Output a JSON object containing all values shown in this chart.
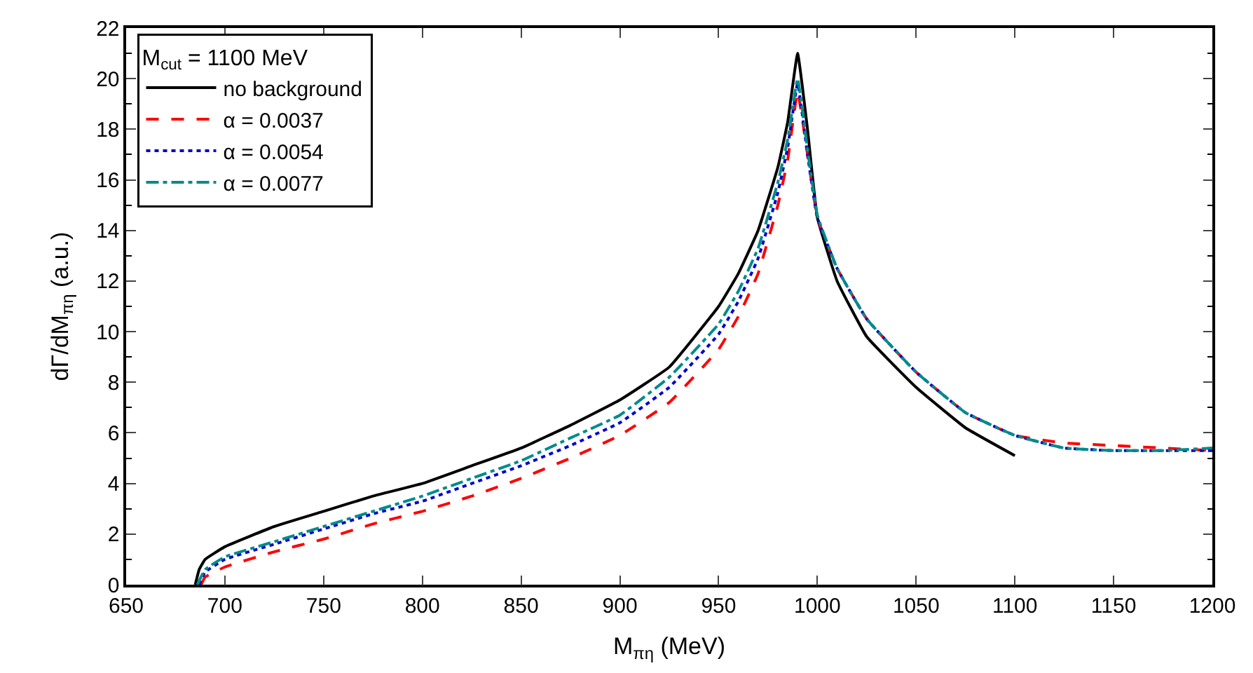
{
  "chart_data": {
    "type": "line",
    "xlabel": "M$_{πη}$ (MeV)",
    "ylabel": "dΓ/dM$_{πη}$ (a.u.)",
    "legend_title": "M$_{cut}$ = 1100 MeV",
    "legend": "top left",
    "marker": "none",
    "xlim": [
      650,
      1200
    ],
    "xticks": [
      650,
      700,
      750,
      800,
      850,
      900,
      950,
      1000,
      1050,
      1100,
      1150,
      1200
    ],
    "ylim": [
      0,
      22
    ],
    "yticks": [
      0,
      2,
      4,
      6,
      8,
      10,
      12,
      14,
      16,
      18,
      20,
      22
    ],
    "series": [
      {
        "name": "no background",
        "color": "#000000",
        "line_style": "solid",
        "x": [
          685,
          687,
          690,
          700,
          725,
          750,
          775,
          800,
          825,
          850,
          875,
          900,
          925,
          950,
          960,
          970,
          980,
          985,
          990,
          995,
          1000,
          1010,
          1025,
          1050,
          1075,
          1100
        ],
        "values": [
          0,
          0.6,
          1.0,
          1.5,
          2.3,
          2.9,
          3.5,
          4.0,
          4.7,
          5.4,
          6.3,
          7.3,
          8.6,
          11.0,
          12.3,
          14.0,
          16.5,
          18.3,
          21.0,
          18.0,
          14.5,
          12.0,
          9.8,
          7.8,
          6.2,
          5.1
        ]
      },
      {
        "name": "α = 0.0037",
        "color": "#ff0000",
        "line_style": "dashed",
        "x": [
          688,
          690,
          700,
          725,
          750,
          775,
          800,
          825,
          850,
          875,
          900,
          925,
          950,
          960,
          970,
          980,
          985,
          990,
          995,
          1000,
          1010,
          1025,
          1050,
          1075,
          1100,
          1125,
          1150,
          1175,
          1200
        ],
        "values": [
          0,
          0.3,
          0.7,
          1.3,
          1.8,
          2.4,
          2.9,
          3.5,
          4.2,
          5.0,
          5.9,
          7.2,
          9.3,
          10.6,
          12.3,
          15.0,
          16.8,
          19.5,
          17.0,
          14.5,
          12.5,
          10.5,
          8.4,
          6.8,
          5.9,
          5.6,
          5.5,
          5.4,
          5.3
        ]
      },
      {
        "name": "α = 0.0054",
        "color": "#0000cc",
        "line_style": "dotted",
        "x": [
          687,
          690,
          700,
          725,
          750,
          775,
          800,
          825,
          850,
          875,
          900,
          925,
          950,
          960,
          970,
          980,
          985,
          990,
          995,
          1000,
          1010,
          1025,
          1050,
          1075,
          1100,
          1125,
          1150,
          1175,
          1200
        ],
        "values": [
          0,
          0.5,
          1.0,
          1.6,
          2.2,
          2.8,
          3.3,
          4.0,
          4.7,
          5.5,
          6.4,
          7.8,
          9.9,
          11.2,
          12.9,
          15.5,
          17.3,
          19.8,
          17.0,
          14.5,
          12.5,
          10.5,
          8.4,
          6.8,
          5.9,
          5.4,
          5.3,
          5.3,
          5.3
        ]
      },
      {
        "name": "α = 0.0077",
        "color": "#008b8b",
        "line_style": "dashdot",
        "x": [
          686,
          690,
          700,
          725,
          750,
          775,
          800,
          825,
          850,
          875,
          900,
          925,
          950,
          960,
          970,
          980,
          985,
          990,
          995,
          1000,
          1010,
          1025,
          1050,
          1075,
          1100,
          1125,
          1150,
          1175,
          1200
        ],
        "values": [
          0,
          0.6,
          1.1,
          1.7,
          2.3,
          2.9,
          3.5,
          4.2,
          4.9,
          5.8,
          6.7,
          8.2,
          10.3,
          11.6,
          13.3,
          15.9,
          17.6,
          20.0,
          17.2,
          14.6,
          12.5,
          10.5,
          8.4,
          6.8,
          5.9,
          5.4,
          5.3,
          5.3,
          5.4
        ]
      }
    ]
  }
}
